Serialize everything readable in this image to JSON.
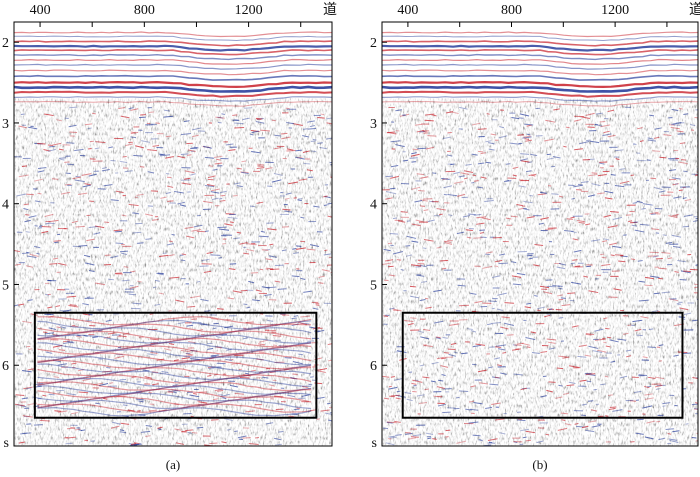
{
  "panels": [
    {
      "id": "a",
      "caption": "(a)",
      "x_ticks": [
        "400",
        "800",
        "1200"
      ],
      "x_unit": "道",
      "y_ticks": [
        "2",
        "3",
        "4",
        "5",
        "6"
      ],
      "y_unit": "s",
      "highlight_box": {
        "x_from": 380,
        "x_to": 1460,
        "y_from": 5.35,
        "y_to": 6.65
      }
    },
    {
      "id": "b",
      "caption": "(b)",
      "x_ticks": [
        "400",
        "800",
        "1200"
      ],
      "x_unit": "道",
      "y_ticks": [
        "2",
        "3",
        "4",
        "5",
        "6"
      ],
      "y_unit": "s",
      "highlight_box": {
        "x_from": 380,
        "x_to": 1460,
        "y_from": 5.35,
        "y_to": 6.65
      }
    }
  ],
  "axis": {
    "x_tick_values": [
      400,
      800,
      1200
    ],
    "y_tick_values": [
      2,
      3,
      4,
      5,
      6
    ],
    "x_range": [
      300,
      1520
    ],
    "y_range": [
      1.75,
      7.0
    ]
  },
  "colors": {
    "positive": "#c8202a",
    "negative": "#2a3f9c",
    "frame": "#000000"
  }
}
